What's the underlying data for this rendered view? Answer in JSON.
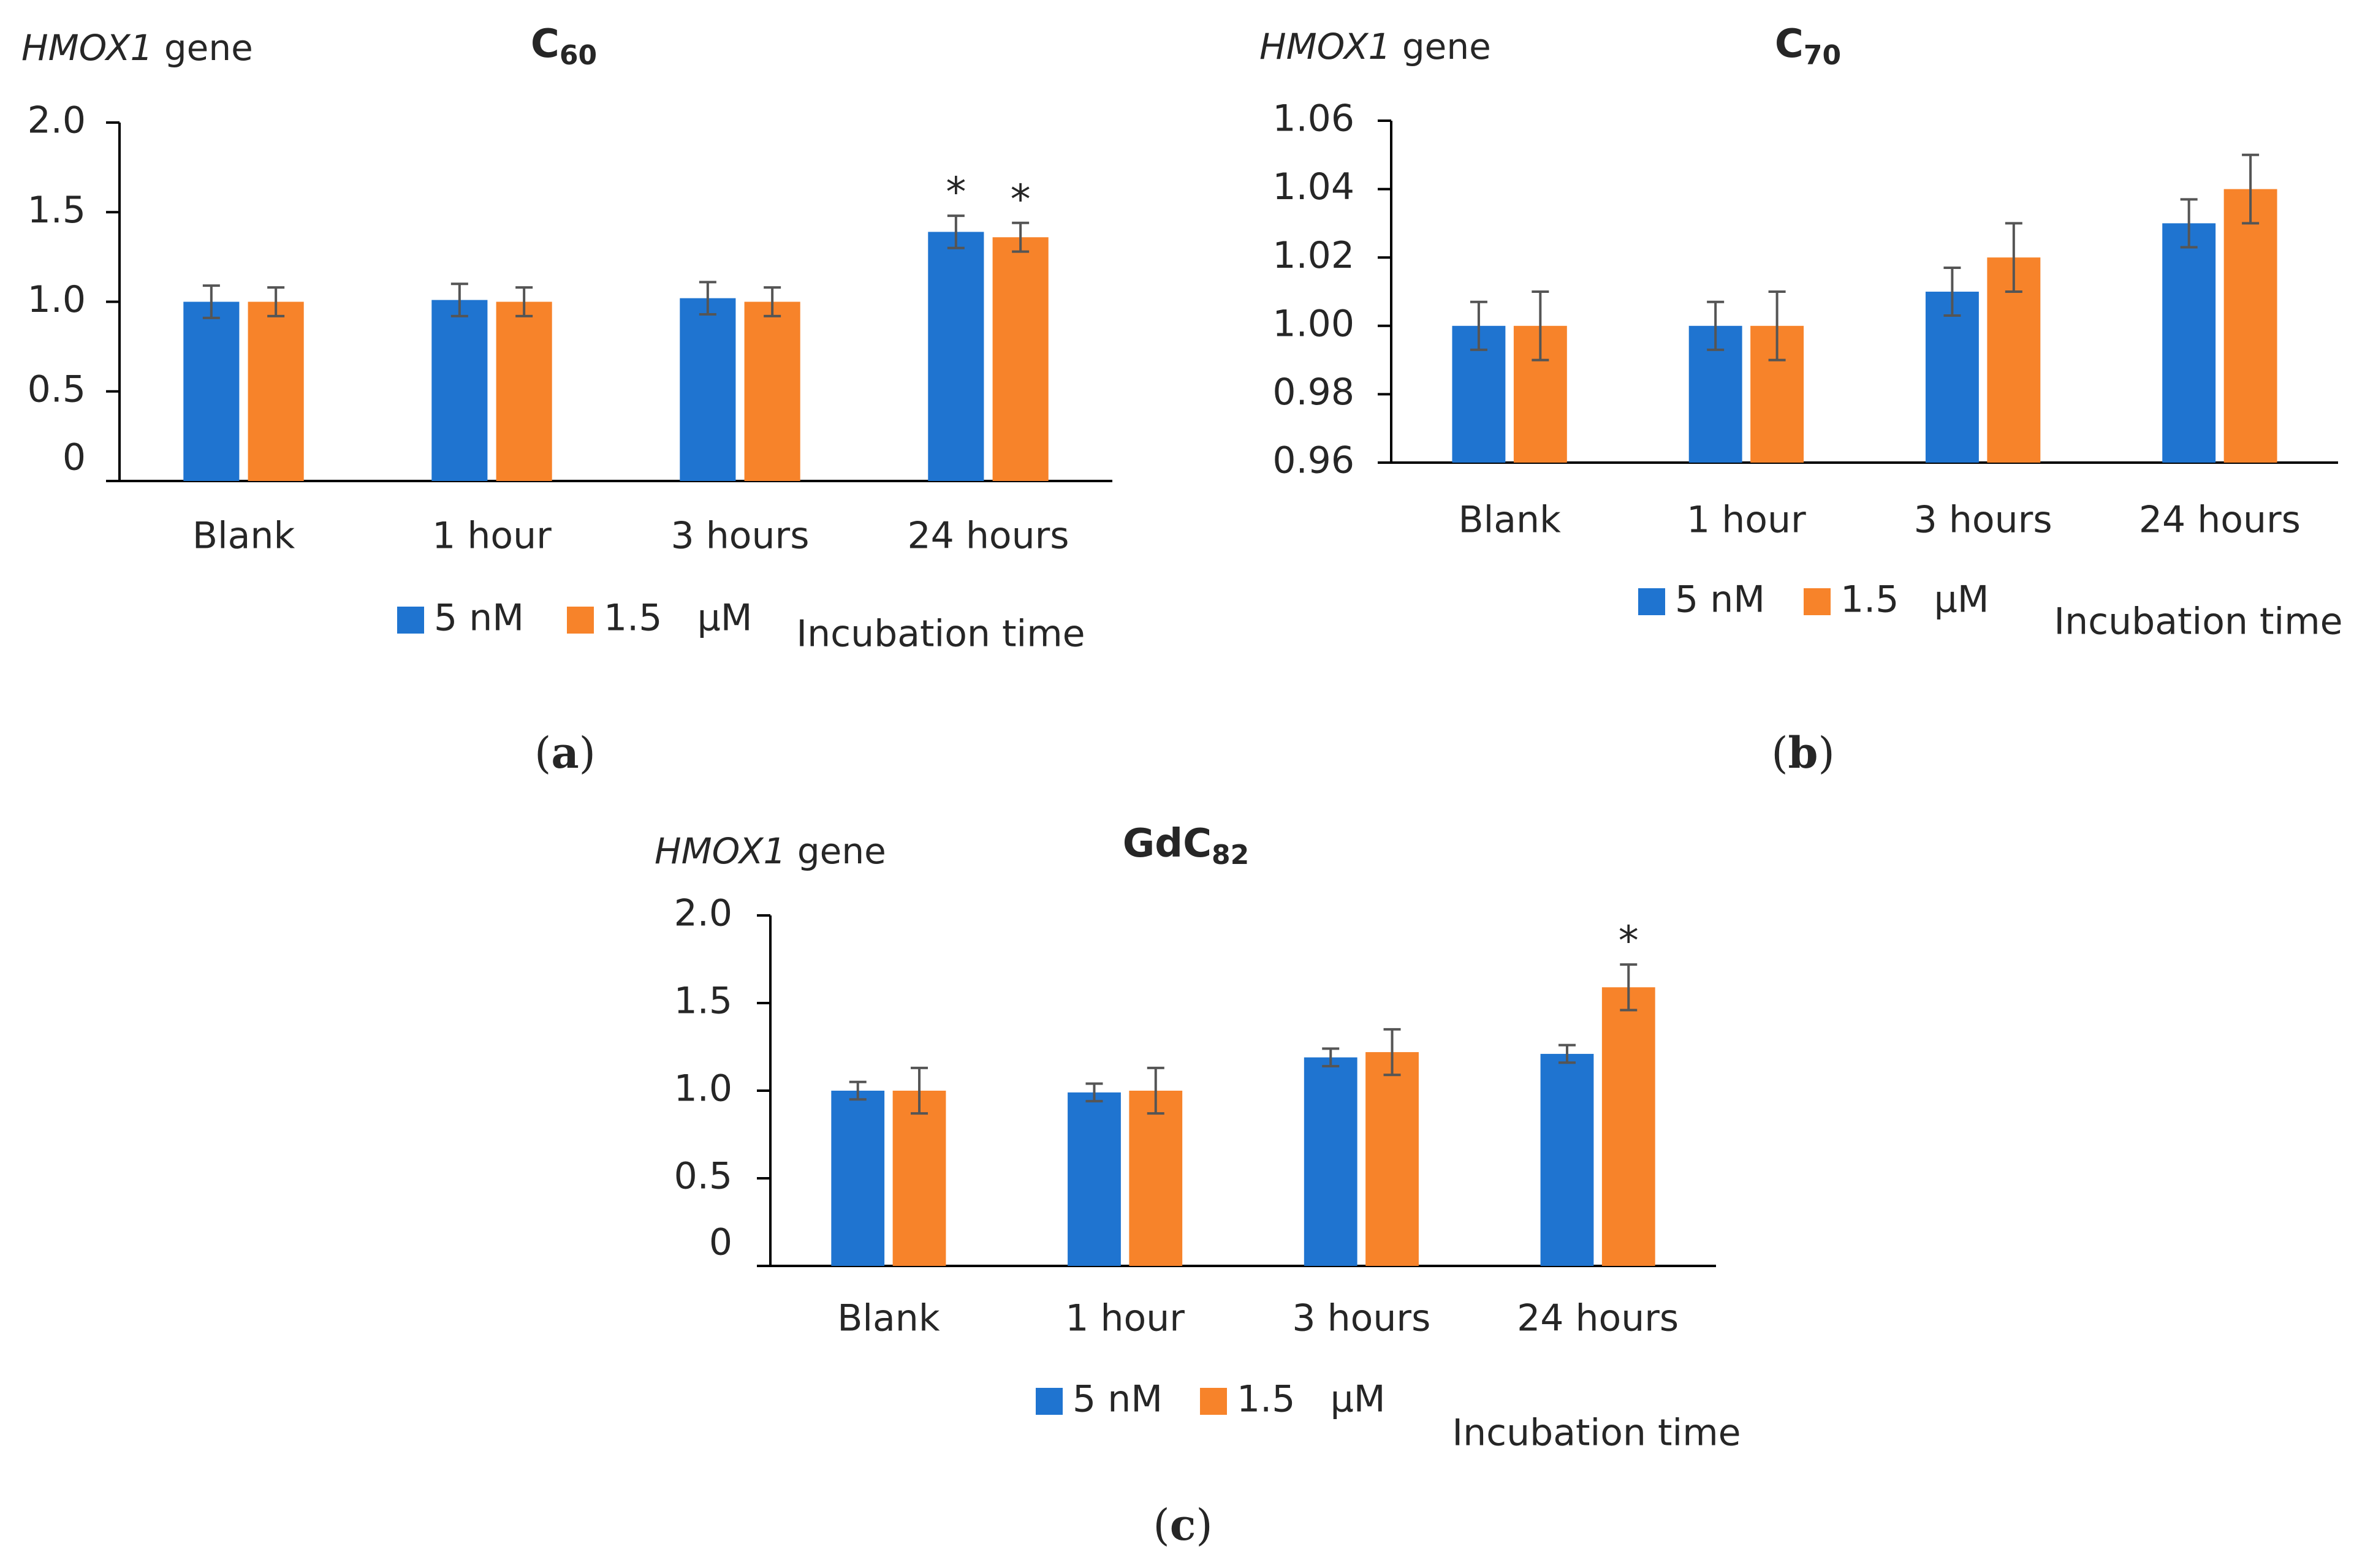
{
  "colors": {
    "series_5nM": "#1f74d0",
    "series_15uM": "#f7832a"
  },
  "chart_data": [
    {
      "id": "a",
      "type": "bar",
      "title_main": "C",
      "title_sub": "60",
      "ylabel_italic": "HMOX1",
      "ylabel_rest": " gene",
      "xlabel": "Incubation time",
      "panel_label": "a",
      "categories": [
        "Blank",
        "1 hour",
        "3 hours",
        "24 hours"
      ],
      "ylim": [
        0,
        2.0
      ],
      "yticks": [
        0,
        0.5,
        1.0,
        1.5,
        2.0
      ],
      "ytick_labels": [
        "0",
        "0.5",
        "1.0",
        "1.5",
        "2.0"
      ],
      "series": [
        {
          "name": "5 nM",
          "values": [
            1.0,
            1.01,
            1.02,
            1.39
          ],
          "errors": [
            0.09,
            0.09,
            0.09,
            0.09
          ],
          "sig": [
            "",
            "",
            "",
            "*"
          ]
        },
        {
          "name": "1.5   μM",
          "values": [
            1.0,
            1.0,
            1.0,
            1.36
          ],
          "errors": [
            0.08,
            0.08,
            0.08,
            0.08
          ],
          "sig": [
            "",
            "",
            "",
            "*"
          ]
        }
      ]
    },
    {
      "id": "b",
      "type": "bar",
      "title_main": "C",
      "title_sub": "70",
      "ylabel_italic": "HMOX1",
      "ylabel_rest": " gene",
      "xlabel": "Incubation time",
      "panel_label": "b",
      "categories": [
        "Blank",
        "1 hour",
        "3 hours",
        "24 hours"
      ],
      "ylim": [
        0.96,
        1.06
      ],
      "yticks": [
        0.96,
        0.98,
        1.0,
        1.02,
        1.04,
        1.06
      ],
      "ytick_labels": [
        "0.96",
        "0.98",
        "1.00",
        "1.02",
        "1.04",
        "1.06"
      ],
      "series": [
        {
          "name": "5 nM",
          "values": [
            1.0,
            1.0,
            1.01,
            1.03
          ],
          "errors": [
            0.007,
            0.007,
            0.007,
            0.007
          ],
          "sig": [
            "",
            "",
            "",
            ""
          ]
        },
        {
          "name": "1.5   μM",
          "values": [
            1.0,
            1.0,
            1.02,
            1.04
          ],
          "errors": [
            0.01,
            0.01,
            0.01,
            0.01
          ],
          "sig": [
            "",
            "",
            "",
            ""
          ]
        }
      ]
    },
    {
      "id": "c",
      "type": "bar",
      "title_main": "GdC",
      "title_sub": "82",
      "ylabel_italic": "HMOX1",
      "ylabel_rest": " gene",
      "xlabel": "Incubation time",
      "panel_label": "c",
      "categories": [
        "Blank",
        "1 hour",
        "3 hours",
        "24 hours"
      ],
      "ylim": [
        0,
        2.0
      ],
      "yticks": [
        0,
        0.5,
        1.0,
        1.5,
        2.0
      ],
      "ytick_labels": [
        "0",
        "0.5",
        "1.0",
        "1.5",
        "2.0"
      ],
      "series": [
        {
          "name": "5 nM",
          "values": [
            1.0,
            0.99,
            1.19,
            1.21
          ],
          "errors": [
            0.05,
            0.05,
            0.05,
            0.05
          ],
          "sig": [
            "",
            "",
            "",
            ""
          ]
        },
        {
          "name": "1.5   μM",
          "values": [
            1.0,
            1.0,
            1.22,
            1.59
          ],
          "errors": [
            0.13,
            0.13,
            0.13,
            0.13
          ],
          "sig": [
            "",
            "",
            "",
            "*"
          ]
        }
      ]
    }
  ]
}
